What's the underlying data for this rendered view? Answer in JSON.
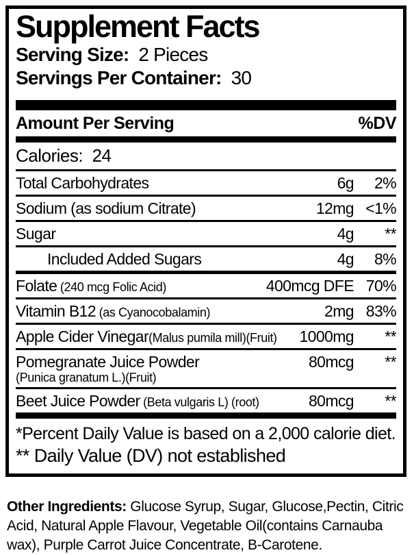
{
  "label": {
    "title": "Supplement Facts",
    "serving_size_label": "Serving Size:",
    "serving_size_value": "2 Pieces",
    "servings_per_container_label": "Servings Per Container:",
    "servings_per_container_value": "30",
    "amount_per_serving": "Amount Per Serving",
    "dv_header": "%DV",
    "calories_label": "Calories:",
    "calories_value": "24",
    "rows": [
      {
        "name": "Total Carbohydrates",
        "detail": "",
        "small": false,
        "detail_below": "",
        "amount": "6g",
        "dv": "2%",
        "indent": false,
        "divider": "normal"
      },
      {
        "name": "Sodium",
        "detail": " (as sodium Citrate)",
        "small": false,
        "detail_below": "",
        "amount": "12mg",
        "dv": "<1%",
        "indent": false,
        "divider": "normal"
      },
      {
        "name": "Sugar",
        "detail": "",
        "small": false,
        "detail_below": "",
        "amount": "4g",
        "dv": "**",
        "indent": false,
        "divider": "normal"
      },
      {
        "name": "Included Added Sugars",
        "detail": "",
        "small": false,
        "detail_below": "",
        "amount": "4g",
        "dv": "8%",
        "indent": true,
        "divider": "thick"
      },
      {
        "name": "Folate",
        "detail": "  (240 mcg Folic Acid)",
        "small": true,
        "detail_below": "",
        "amount": "400mcg DFE",
        "dv": "70%",
        "indent": false,
        "divider": "normal"
      },
      {
        "name": "Vitamin B12",
        "detail": " (as Cyanocobalamin)",
        "small": true,
        "detail_below": "",
        "amount": "2mg",
        "dv": "83%",
        "indent": false,
        "divider": "normal"
      },
      {
        "name": "Apple Cider Vinegar",
        "detail": "(Malus pumila mill)(Fruit)",
        "small": true,
        "detail_below": "",
        "amount": "1000mg",
        "dv": "**",
        "indent": false,
        "divider": "normal"
      },
      {
        "name": "Pomegranate Juice Powder",
        "detail": "",
        "small": false,
        "detail_below": "(Punica granatum L.)(Fruit)",
        "amount": "80mcg",
        "dv": "**",
        "indent": false,
        "divider": "normal"
      },
      {
        "name": "Beet Juice Powder",
        "detail": " (Beta vulgaris L) (root)",
        "small": true,
        "detail_below": "",
        "amount": "80mcg",
        "dv": "**",
        "indent": false,
        "divider": "none"
      }
    ],
    "footnotes": [
      "*Percent Daily Value is based on a 2,000 calorie diet.",
      "** Daily Value (DV) not established"
    ],
    "other_ingredients_label": "Other Ingredients:",
    "other_ingredients_text": " Glucose Syrup, Sugar, Glucose,Pectin, Citric Acid,  Natural Apple Flavour, Vegetable Oil(contains Carnauba wax), Purple Carrot Juice Concentrate, B-Carotene."
  }
}
